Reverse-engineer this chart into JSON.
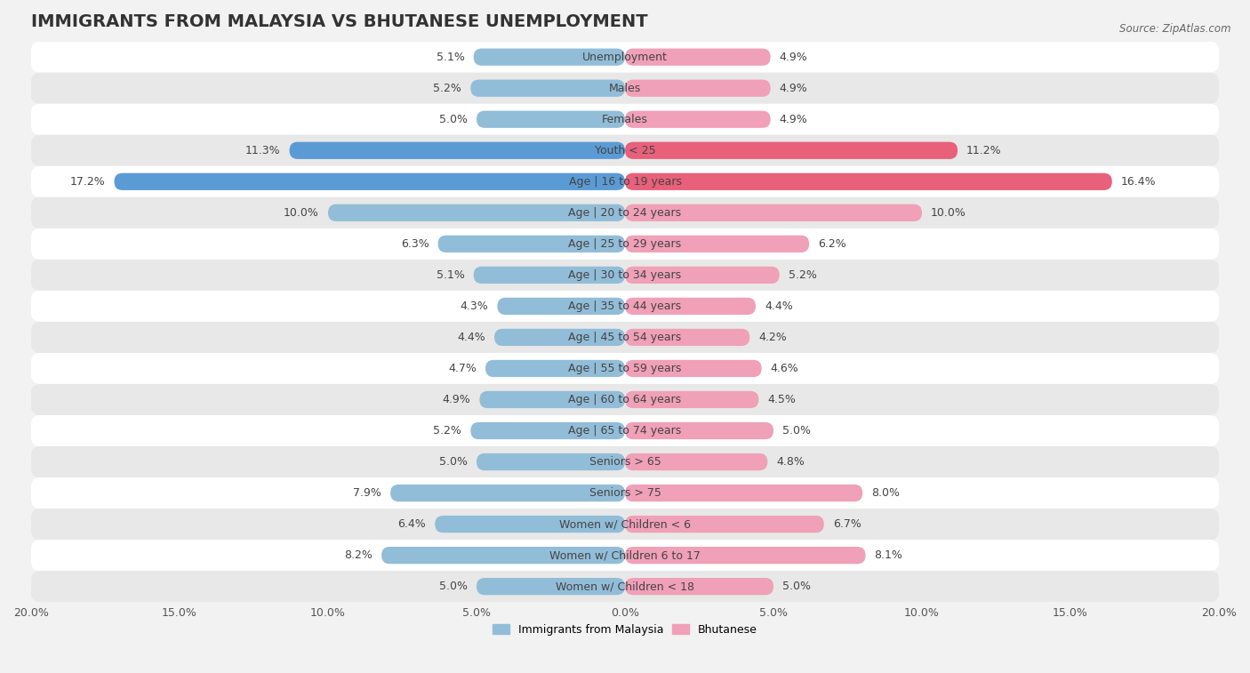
{
  "title": "IMMIGRANTS FROM MALAYSIA VS BHUTANESE UNEMPLOYMENT",
  "source": "Source: ZipAtlas.com",
  "categories": [
    "Unemployment",
    "Males",
    "Females",
    "Youth < 25",
    "Age | 16 to 19 years",
    "Age | 20 to 24 years",
    "Age | 25 to 29 years",
    "Age | 30 to 34 years",
    "Age | 35 to 44 years",
    "Age | 45 to 54 years",
    "Age | 55 to 59 years",
    "Age | 60 to 64 years",
    "Age | 65 to 74 years",
    "Seniors > 65",
    "Seniors > 75",
    "Women w/ Children < 6",
    "Women w/ Children 6 to 17",
    "Women w/ Children < 18"
  ],
  "malaysia_values": [
    5.1,
    5.2,
    5.0,
    11.3,
    17.2,
    10.0,
    6.3,
    5.1,
    4.3,
    4.4,
    4.7,
    4.9,
    5.2,
    5.0,
    7.9,
    6.4,
    8.2,
    5.0
  ],
  "bhutanese_values": [
    4.9,
    4.9,
    4.9,
    11.2,
    16.4,
    10.0,
    6.2,
    5.2,
    4.4,
    4.2,
    4.6,
    4.5,
    5.0,
    4.8,
    8.0,
    6.7,
    8.1,
    5.0
  ],
  "malaysia_color": "#92bdd8",
  "bhutanese_color": "#f0a0b8",
  "malaysia_highlight_color": "#5b9bd5",
  "bhutanese_highlight_color": "#e8607a",
  "axis_max": 20.0,
  "bar_height": 0.55,
  "background_color": "#f2f2f2",
  "row_color_odd": "#ffffff",
  "row_color_even": "#e8e8e8",
  "title_fontsize": 14,
  "label_fontsize": 9,
  "value_fontsize": 9,
  "tick_fontsize": 9,
  "legend_fontsize": 9
}
